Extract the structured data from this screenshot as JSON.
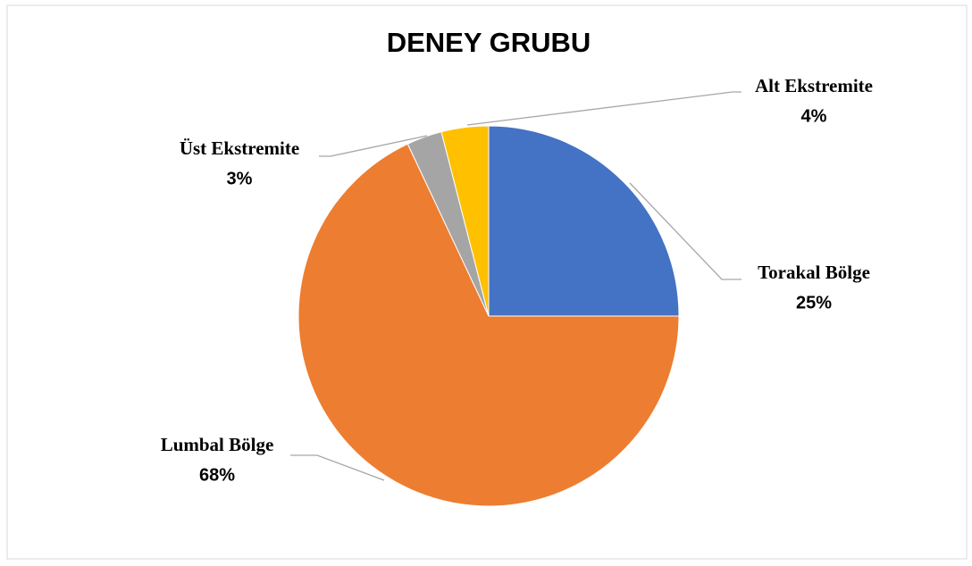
{
  "chart_data": {
    "type": "pie",
    "title": "DENEY GRUBU",
    "categories": [
      "Torakal Bölge",
      "Lumbal Bölge",
      "Üst Ekstremite",
      "Alt Ekstremite"
    ],
    "values": [
      25,
      68,
      3,
      4
    ],
    "value_labels": [
      "25%",
      "68%",
      "3%",
      "4%"
    ],
    "colors": [
      "#4472c4",
      "#ed7d31",
      "#a5a5a5",
      "#ffc000"
    ]
  }
}
